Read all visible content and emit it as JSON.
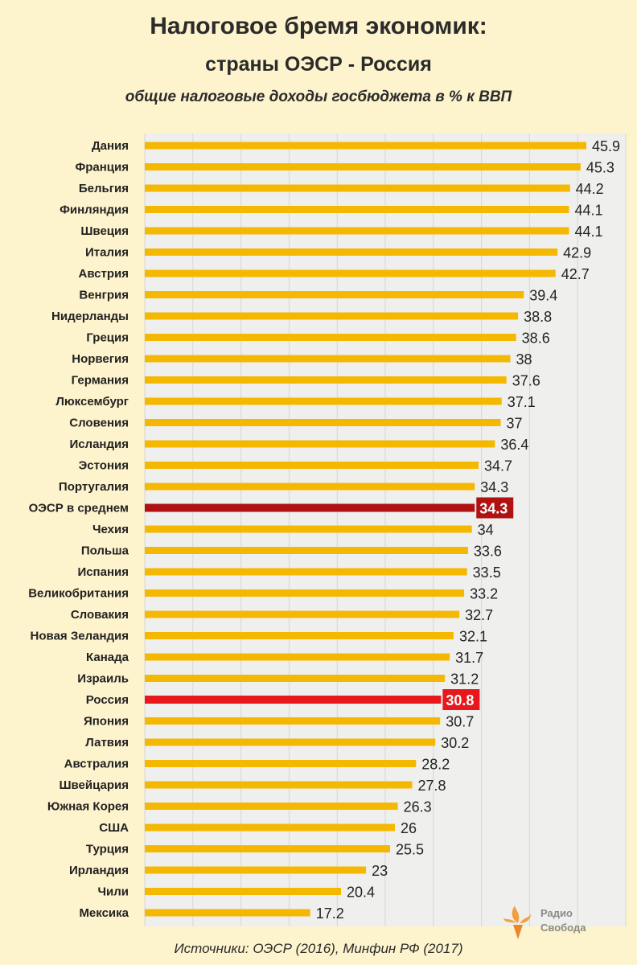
{
  "header": {
    "title": "Налоговое бремя экономик:",
    "subtitle": "страны ОЭСР - Россия",
    "subtitle2": "общие налоговые доходы госбюджета в % к ВВП"
  },
  "footer": {
    "source": "Источники: ОЭСР (2016), Минфин РФ (2017)",
    "logo_line1": "Радио",
    "logo_line2": "Свобода"
  },
  "colors": {
    "bar": "#f5b800",
    "oecd_highlight": "#b01212",
    "russia_highlight": "#e8171b",
    "background": "#fdf3cc",
    "plot_background": "#efefee"
  },
  "chart_data": {
    "type": "bar",
    "orientation": "horizontal",
    "title": "Налоговое бремя экономик: страны ОЭСР - Россия",
    "xlabel": "",
    "ylabel": "",
    "xlim": [
      0,
      50
    ],
    "grid": true,
    "categories": [
      "Дания",
      "Франция",
      "Бельгия",
      "Финляндия",
      "Швеция",
      "Италия",
      "Австрия",
      "Венгрия",
      "Нидерланды",
      "Греция",
      "Норвегия",
      "Германия",
      "Люксембург",
      "Словения",
      "Исландия",
      "Эстония",
      "Португалия",
      "ОЭСР в среднем",
      "Чехия",
      "Польша",
      "Испания",
      "Великобритания",
      "Словакия",
      "Новая Зеландия",
      "Канада",
      "Израиль",
      "Россия",
      "Япония",
      "Латвия",
      "Австралия",
      "Швейцария",
      "Южная Корея",
      "США",
      "Турция",
      "Ирландия",
      "Чили",
      "Мексика"
    ],
    "values": [
      45.9,
      45.3,
      44.2,
      44.1,
      44.1,
      42.9,
      42.7,
      39.4,
      38.8,
      38.6,
      38,
      37.6,
      37.1,
      37,
      36.4,
      34.7,
      34.3,
      34.3,
      34,
      33.6,
      33.5,
      33.2,
      32.7,
      32.1,
      31.7,
      31.2,
      30.8,
      30.7,
      30.2,
      28.2,
      27.8,
      26.3,
      26,
      25.5,
      23,
      20.4,
      17.2
    ],
    "value_labels": [
      "45.9",
      "45.3",
      "44.2",
      "44.1",
      "44.1",
      "42.9",
      "42.7",
      "39.4",
      "38.8",
      "38.6",
      "38",
      "37.6",
      "37.1",
      "37",
      "36.4",
      "34.7",
      "34.3",
      "34.3",
      "34",
      "33.6",
      "33.5",
      "33.2",
      "32.7",
      "32.1",
      "31.7",
      "31.2",
      "30.8",
      "30.7",
      "30.2",
      "28.2",
      "27.8",
      "26.3",
      "26",
      "25.5",
      "23",
      "20.4",
      "17.2"
    ],
    "highlights": {
      "ОЭСР в среднем": "oecd",
      "Россия": "russia"
    }
  }
}
